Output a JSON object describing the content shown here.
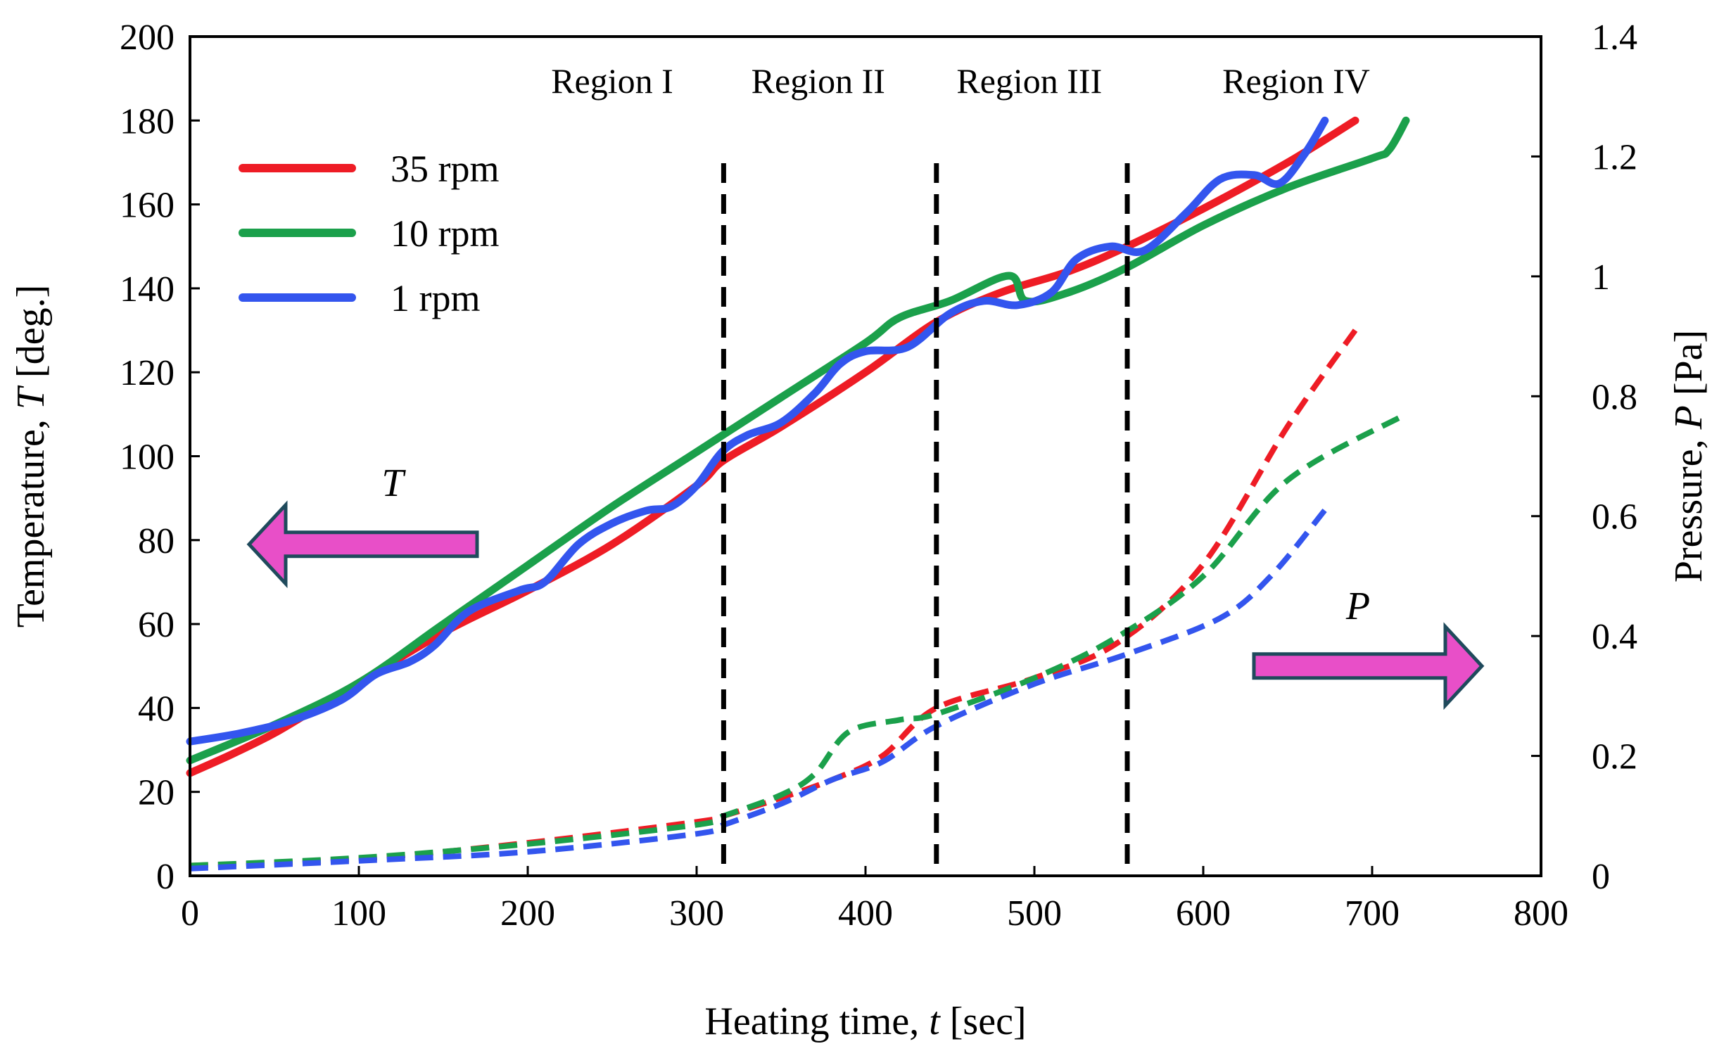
{
  "chart_data": {
    "type": "line",
    "title": "",
    "xlabel": "Heating time, ",
    "xlabel_var": "t",
    "xlabel_unit": " [sec]",
    "ylabel": "Temperature, ",
    "ylabel_var": "T",
    "ylabel_unit": " [deg.]",
    "y2label": "Pressure, ",
    "y2label_var": "P",
    "y2label_unit": " [Pa]",
    "xlim": [
      0,
      800
    ],
    "ylim": [
      0,
      200
    ],
    "y2lim": [
      0,
      1.4
    ],
    "xticks": [
      "0",
      "100",
      "200",
      "300",
      "400",
      "500",
      "600",
      "700",
      "800"
    ],
    "yticks": [
      "0",
      "20",
      "40",
      "60",
      "80",
      "100",
      "120",
      "140",
      "160",
      "180",
      "200"
    ],
    "y2ticks": [
      "0",
      "0.2",
      "0.4",
      "0.6",
      "0.8",
      "1",
      "1.2",
      "1.4"
    ],
    "xtick_values": [
      0,
      100,
      200,
      300,
      400,
      500,
      600,
      700,
      800
    ],
    "ytick_values": [
      0,
      20,
      40,
      60,
      80,
      100,
      120,
      140,
      160,
      180,
      200
    ],
    "y2tick_values": [
      0,
      0.2,
      0.4,
      0.6,
      0.8,
      1.0,
      1.2,
      1.4
    ],
    "grid": false,
    "legend_position": "top-left",
    "regions": [
      {
        "label": "Region I",
        "x": 250
      },
      {
        "label": "Region II",
        "x": 372
      },
      {
        "label": "Region III",
        "x": 497
      },
      {
        "label": "Region IV",
        "x": 655
      }
    ],
    "region_boundaries": [
      316,
      442,
      555
    ],
    "annotations": {
      "T_arrow": {
        "label": "T",
        "direction": "left",
        "x": [
          35,
          170
        ],
        "y": 79
      },
      "P_arrow": {
        "label": "P",
        "direction": "right",
        "x": [
          630,
          765
        ],
        "y": 50
      }
    },
    "series": [
      {
        "name": "35 rpm",
        "color": "#ee1c25",
        "axis": "left",
        "x": [
          0,
          25,
          50,
          75,
          100,
          150,
          200,
          250,
          300,
          316,
          350,
          400,
          442,
          480,
          520,
          555,
          600,
          650,
          690
        ],
        "values": [
          24.5,
          29,
          34,
          40,
          46,
          58,
          68,
          79,
          93,
          99,
          107,
          120,
          132,
          139,
          144,
          150,
          159,
          170,
          180
        ]
      },
      {
        "name": "10 rpm",
        "color": "#1ba04b",
        "axis": "left",
        "x": [
          0,
          50,
          100,
          150,
          200,
          250,
          300,
          350,
          400,
          420,
          450,
          485,
          495,
          520,
          555,
          600,
          650,
          700,
          710,
          720
        ],
        "values": [
          27.5,
          36,
          46,
          60,
          74,
          88,
          101,
          114,
          127,
          133,
          137,
          143,
          137,
          139,
          145,
          155,
          164,
          171,
          173,
          180
        ]
      },
      {
        "name": "1 rpm",
        "color": "#3355ee",
        "axis": "left",
        "x": [
          0,
          30,
          60,
          90,
          110,
          130,
          145,
          165,
          195,
          210,
          230,
          250,
          270,
          285,
          300,
          315,
          330,
          350,
          370,
          385,
          400,
          425,
          450,
          470,
          490,
          510,
          525,
          545,
          565,
          590,
          610,
          630,
          645,
          660,
          672
        ],
        "values": [
          32,
          34,
          37,
          42,
          48,
          51,
          55,
          63,
          68,
          70,
          79,
          84,
          87,
          88,
          93,
          101,
          105,
          108,
          115,
          122,
          125,
          126,
          134,
          137,
          136,
          139,
          147,
          150,
          149,
          158,
          166,
          167,
          165,
          172,
          180
        ]
      },
      {
        "name": "35 rpm pressure",
        "color": "#ee1c25",
        "axis": "right",
        "dashed": true,
        "x": [
          0,
          100,
          200,
          300,
          316,
          350,
          380,
          410,
          442,
          500,
          550,
          600,
          650,
          690
        ],
        "values": [
          0.017,
          0.028,
          0.055,
          0.09,
          0.1,
          0.13,
          0.16,
          0.2,
          0.28,
          0.33,
          0.39,
          0.52,
          0.75,
          0.91
        ]
      },
      {
        "name": "10 rpm pressure",
        "color": "#1ba04b",
        "axis": "right",
        "dashed": true,
        "x": [
          0,
          100,
          200,
          300,
          316,
          350,
          370,
          390,
          420,
          442,
          500,
          550,
          600,
          650,
          720
        ],
        "values": [
          0.017,
          0.03,
          0.053,
          0.085,
          0.1,
          0.135,
          0.17,
          0.24,
          0.26,
          0.27,
          0.33,
          0.4,
          0.5,
          0.66,
          0.77
        ]
      },
      {
        "name": "1 rpm pressure",
        "color": "#3355ee",
        "axis": "right",
        "dashed": true,
        "x": [
          0,
          100,
          200,
          300,
          316,
          350,
          380,
          410,
          442,
          500,
          555,
          610,
          640,
          672
        ],
        "values": [
          0.012,
          0.025,
          0.04,
          0.07,
          0.085,
          0.12,
          0.16,
          0.19,
          0.25,
          0.32,
          0.37,
          0.43,
          0.5,
          0.61
        ]
      }
    ]
  }
}
